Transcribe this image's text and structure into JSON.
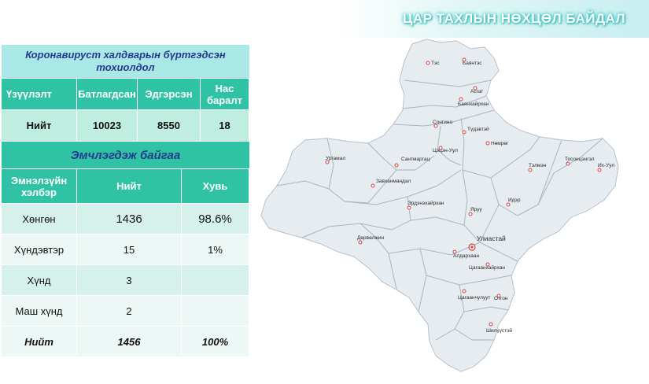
{
  "slide_title": "ЦАР ТАХЛЫН НӨХЦӨЛ БАЙДАЛ",
  "table1": {
    "caption": "Коронавируст халдварын бүртгэдсэн тохиолдол",
    "headers": [
      "Үзүүлэлт",
      "Батлагдсан",
      "Эдгэрсэн",
      "Нас баралт"
    ],
    "total_row": [
      "Нийт",
      "10023",
      "8550",
      "18"
    ]
  },
  "table2": {
    "caption": "Эмчлэгдэж байгаа",
    "headers": [
      "Эмнэлзүйн хэлбэр",
      "Нийт",
      "Хувь"
    ],
    "rows": [
      [
        "Хөнгөн",
        "1436",
        "98.6%"
      ],
      [
        "Хүндэвтэр",
        "15",
        "1%"
      ],
      [
        "Хүнд",
        "3",
        ""
      ],
      [
        "Маш хүнд",
        "2",
        ""
      ]
    ],
    "total_row": [
      "Нийт",
      "1456",
      "100%"
    ]
  },
  "map": {
    "capital": "Улиастай",
    "labels": [
      "Тэс",
      "Баянтэс",
      "Асгат",
      "Баянхайрхан",
      "Сонгино",
      "Түдэвтэй",
      "Нөмрөг",
      "Цэцэн-Уул",
      "Ургамал",
      "Сантмаргац",
      "Тэлмэн",
      "Тосонцэнгэл",
      "Их-Уул",
      "Завханмандал",
      "Эрдэнэхайрхан",
      "Яруу",
      "Идэр",
      "Дөрвөлжин",
      "Алдархаан",
      "Цагаанхайрхан",
      "Отгон",
      "Цагаанчулуут",
      "Шилүүстэй"
    ]
  },
  "colors": {
    "header": "#2fc2a4",
    "caption_text": "#243b8c",
    "map_fill": "#e7ecf1",
    "dot": "#d84040"
  }
}
